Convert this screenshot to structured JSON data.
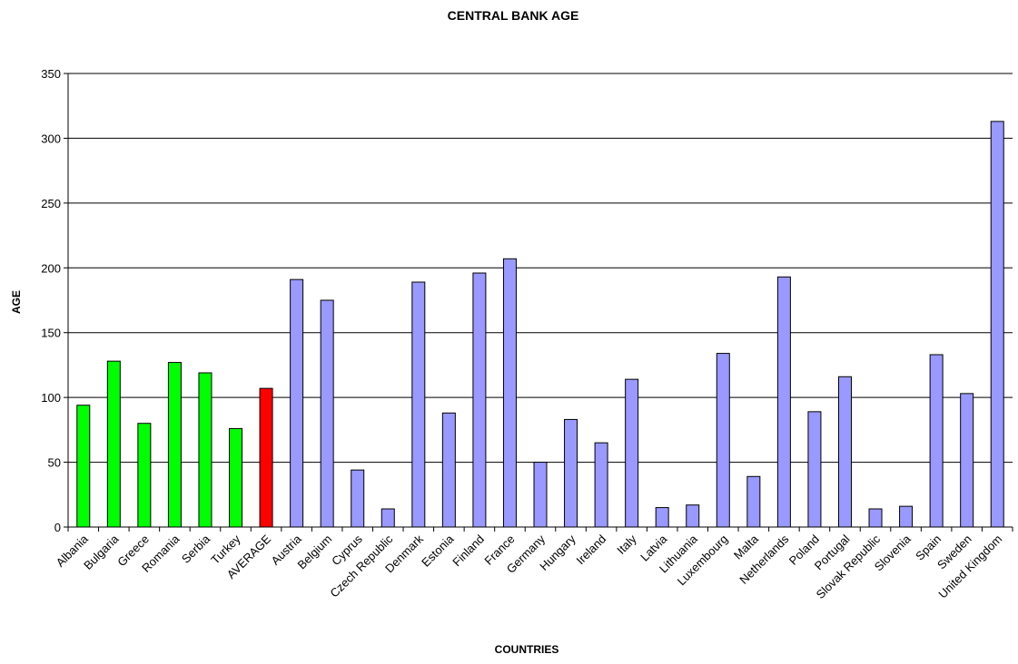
{
  "chart_data": {
    "type": "bar",
    "title": "CENTRAL BANK AGE",
    "xlabel": "COUNTRIES",
    "ylabel": "AGE",
    "ylim": [
      0,
      350
    ],
    "yticks": [
      0,
      50,
      100,
      150,
      200,
      250,
      300,
      350
    ],
    "grid": true,
    "legend": "none",
    "categories": [
      "Albania",
      "Bulgaria",
      "Greece",
      "Romania",
      "Serbia",
      "Turkey",
      "AVERAGE",
      "Austria",
      "Belgium",
      "Cyprus",
      "Czech Republic",
      "Denmark",
      "Estonia",
      "Finland",
      "France",
      "Germany",
      "Hungary",
      "Ireland",
      "Italy",
      "Latvia",
      "Lithuania",
      "Luxembourg",
      "Malta",
      "Netherlands",
      "Poland",
      "Portugal",
      "Slovak Republic",
      "Slovenia",
      "Spain",
      "Sweden",
      "United Kingdom"
    ],
    "values": [
      94,
      128,
      80,
      127,
      119,
      76,
      107,
      191,
      175,
      44,
      14,
      189,
      88,
      196,
      207,
      50,
      83,
      65,
      114,
      15,
      17,
      134,
      39,
      193,
      89,
      116,
      14,
      16,
      133,
      103,
      313
    ],
    "bar_colors": [
      "#00ff00",
      "#00ff00",
      "#00ff00",
      "#00ff00",
      "#00ff00",
      "#00ff00",
      "#ff0000",
      "#9999ff",
      "#9999ff",
      "#9999ff",
      "#9999ff",
      "#9999ff",
      "#9999ff",
      "#9999ff",
      "#9999ff",
      "#9999ff",
      "#9999ff",
      "#9999ff",
      "#9999ff",
      "#9999ff",
      "#9999ff",
      "#9999ff",
      "#9999ff",
      "#9999ff",
      "#9999ff",
      "#9999ff",
      "#9999ff",
      "#9999ff",
      "#9999ff",
      "#9999ff",
      "#9999ff"
    ]
  }
}
